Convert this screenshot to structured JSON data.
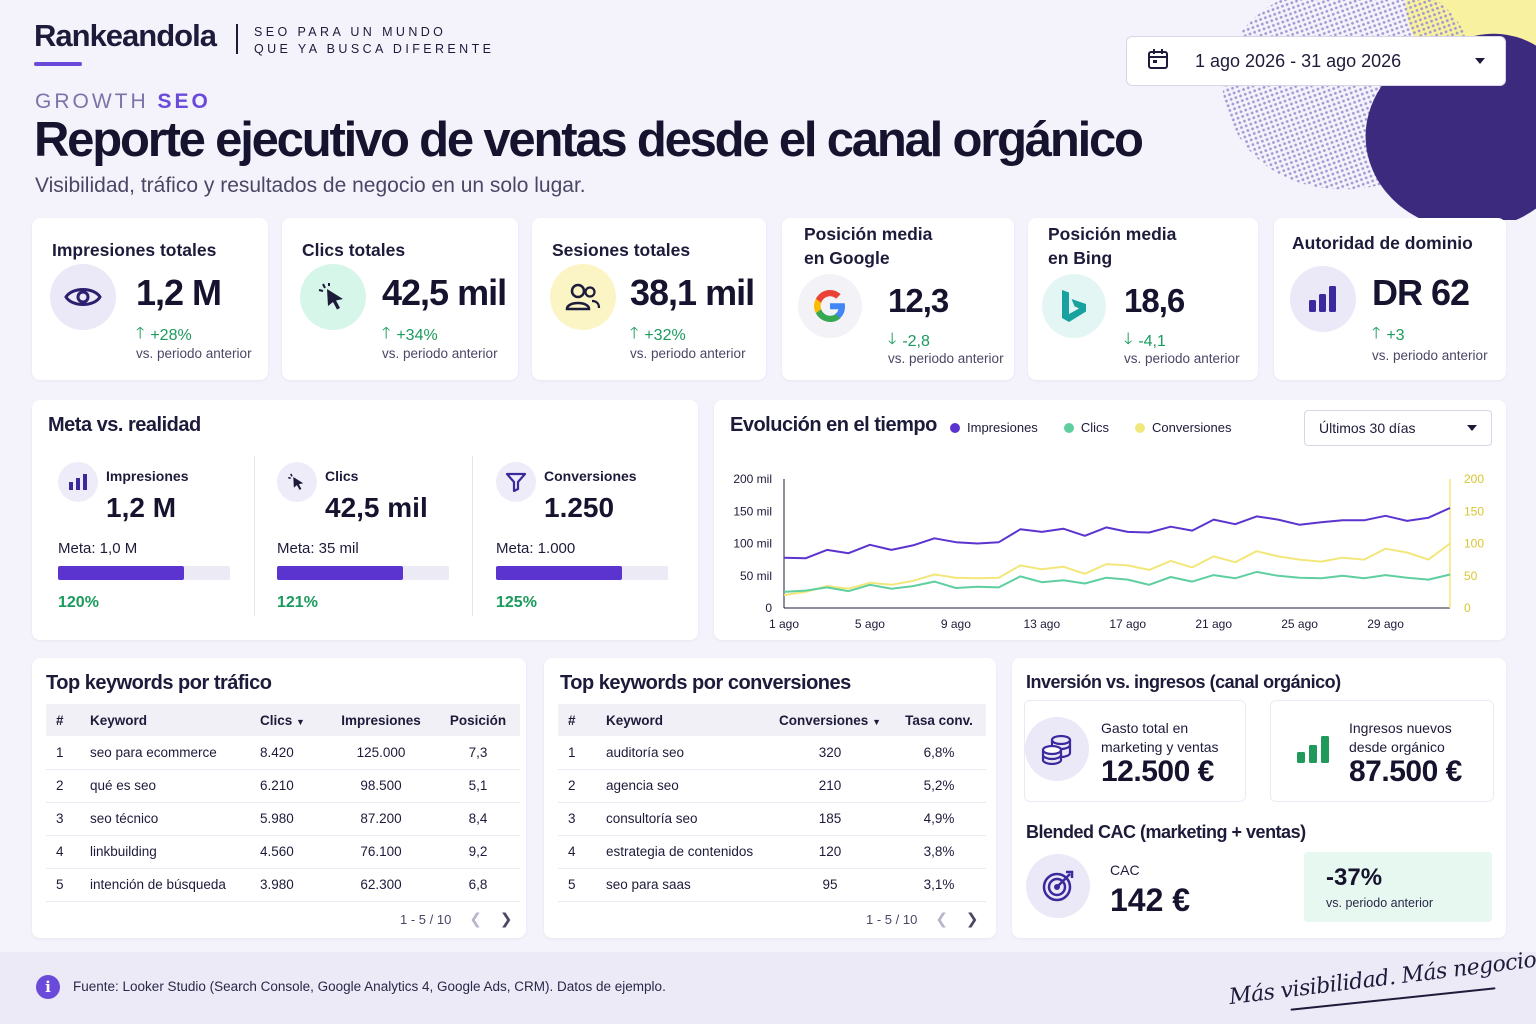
{
  "brand": {
    "logo": "Rankeandola",
    "tagline_line1": "SEO PARA UN MUNDO",
    "tagline_line2": "QUE YA BUSCA DIFERENTE"
  },
  "date_range": {
    "value": "1 ago 2026 - 31 ago 2026",
    "icon": "calendar-icon"
  },
  "header": {
    "eyebrow_a": "GROWTH",
    "eyebrow_b": "SEO",
    "title": "Reporte ejecutivo de ventas desde el canal orgánico",
    "subtitle": "Visibilidad, tráfico y resultados de negocio en un solo lugar."
  },
  "kpis": [
    {
      "title": "Impresiones totales",
      "value": "1,2 M",
      "delta": "+28%",
      "direction": "up",
      "prev": "vs. periodo anterior",
      "icon": "eye-icon",
      "icon_bg": "#ebe8f8"
    },
    {
      "title": "Clics totales",
      "value": "42,5 mil",
      "delta": "+34%",
      "direction": "up",
      "prev": "vs. periodo anterior",
      "icon": "cursor-click-icon",
      "icon_bg": "#d7f6ea"
    },
    {
      "title": "Sesiones totales",
      "value": "38,1 mil",
      "delta": "+32%",
      "direction": "up",
      "prev": "vs. periodo anterior",
      "icon": "users-icon",
      "icon_bg": "#fbf5c5"
    },
    {
      "title_line1": "Posición media",
      "title_line2": "en Google",
      "value": "12,3",
      "delta": "-2,8",
      "direction": "down",
      "prev": "vs. periodo anterior",
      "icon": "google-icon",
      "icon_bg": "#f3f2f7"
    },
    {
      "title_line1": "Posición media",
      "title_line2": "en Bing",
      "value": "18,6",
      "delta": "-4,1",
      "direction": "down",
      "prev": "vs. periodo anterior",
      "icon": "bing-icon",
      "icon_bg": "#e4f6f4"
    },
    {
      "title": "Autoridad de dominio",
      "value": "DR 62",
      "delta": "+3",
      "direction": "up",
      "prev": "vs. periodo anterior",
      "icon": "bar-chart-icon",
      "icon_bg": "#ebe8f8"
    }
  ],
  "goals": {
    "title": "Meta vs. realidad",
    "items": [
      {
        "label": "Impresiones",
        "value": "1,2 M",
        "meta": "Meta: 1,0 M",
        "progress": 0.73,
        "pct": "120%",
        "icon": "bar-chart-icon"
      },
      {
        "label": "Clics",
        "value": "42,5 mil",
        "meta": "Meta: 35 mil",
        "progress": 0.73,
        "pct": "121%",
        "icon": "cursor-click-icon"
      },
      {
        "label": "Conversiones",
        "value": "1.250",
        "meta": "Meta: 1.000",
        "progress": 0.73,
        "pct": "125%",
        "icon": "funnel-icon"
      }
    ]
  },
  "evolution": {
    "title": "Evolución en el tiempo",
    "period": "Últimos 30 días",
    "colors": {
      "impresiones": "#5b34d0",
      "clics": "#5fcf9f",
      "conversiones": "#f2e77a"
    }
  },
  "chart_data": {
    "type": "line",
    "x": [
      "1 ago",
      "2 ago",
      "3 ago",
      "4 ago",
      "5 ago",
      "6 ago",
      "7 ago",
      "8 ago",
      "9 ago",
      "10 ago",
      "11 ago",
      "12 ago",
      "13 ago",
      "14 ago",
      "15 ago",
      "16 ago",
      "17 ago",
      "18 ago",
      "19 ago",
      "20 ago",
      "21 ago",
      "22 ago",
      "23 ago",
      "24 ago",
      "25 ago",
      "26 ago",
      "27 ago",
      "28 ago",
      "29 ago",
      "30 ago",
      "31 ago",
      "1 sep"
    ],
    "x_tick_labels": [
      "1 ago",
      "5 ago",
      "9 ago",
      "13 ago",
      "17 ago",
      "21 ago",
      "25 ago",
      "29 ago"
    ],
    "y_left_ticks": [
      "0",
      "50 mil",
      "100 mil",
      "150 mil",
      "200 mil"
    ],
    "y_right_ticks": [
      "0",
      "50",
      "100",
      "150",
      "200"
    ],
    "ylim_left": [
      0,
      200000
    ],
    "ylim_right": [
      0,
      200
    ],
    "series": [
      {
        "name": "Impresiones",
        "axis": "left",
        "values": [
          78000,
          77000,
          90000,
          85000,
          98000,
          90000,
          97000,
          108000,
          102000,
          100000,
          102000,
          122000,
          118000,
          123000,
          112000,
          125000,
          118000,
          117000,
          126000,
          120000,
          137000,
          130000,
          142000,
          137000,
          129000,
          133000,
          136000,
          136000,
          143000,
          135000,
          140000,
          155000
        ]
      },
      {
        "name": "Clics",
        "axis": "left",
        "values": [
          25000,
          27000,
          32000,
          26000,
          36000,
          30000,
          34000,
          41000,
          31000,
          33000,
          32000,
          49000,
          40000,
          43000,
          38000,
          47000,
          44000,
          36000,
          48000,
          41000,
          51000,
          46000,
          56000,
          50000,
          47000,
          46000,
          50000,
          46000,
          51000,
          47000,
          44000,
          52000
        ]
      },
      {
        "name": "Conversiones",
        "axis": "right",
        "values": [
          20,
          25,
          34,
          30,
          39,
          36,
          42,
          52,
          47,
          46,
          47,
          66,
          60,
          64,
          53,
          68,
          66,
          59,
          73,
          63,
          80,
          71,
          88,
          80,
          75,
          72,
          78,
          75,
          92,
          86,
          75,
          100
        ]
      }
    ]
  },
  "top_traffic": {
    "title": "Top keywords por tráfico",
    "headers": [
      "#",
      "Keyword",
      "Clics",
      "Impresiones",
      "Posición"
    ],
    "rows": [
      [
        "1",
        "seo para ecommerce",
        "8.420",
        "125.000",
        "7,3"
      ],
      [
        "2",
        "qué es seo",
        "6.210",
        "98.500",
        "5,1"
      ],
      [
        "3",
        "seo técnico",
        "5.980",
        "87.200",
        "8,4"
      ],
      [
        "4",
        "linkbuilding",
        "4.560",
        "76.100",
        "9,2"
      ],
      [
        "5",
        "intención de búsqueda",
        "3.980",
        "62.300",
        "6,8"
      ]
    ],
    "pager": "1 - 5 / 10"
  },
  "top_conversions": {
    "title": "Top keywords por conversiones",
    "headers": [
      "#",
      "Keyword",
      "Conversiones",
      "Tasa conv."
    ],
    "rows": [
      [
        "1",
        "auditoría seo",
        "320",
        "6,8%"
      ],
      [
        "2",
        "agencia seo",
        "210",
        "5,2%"
      ],
      [
        "3",
        "consultoría seo",
        "185",
        "4,9%"
      ],
      [
        "4",
        "estrategia de contenidos",
        "120",
        "3,8%"
      ],
      [
        "5",
        "seo para saas",
        "95",
        "3,1%"
      ]
    ],
    "pager": "1 - 5 / 10"
  },
  "investment": {
    "title": "Inversión vs. ingresos (canal orgánico)",
    "spend_label_1": "Gasto total en",
    "spend_label_2": "marketing y ventas",
    "spend_value": "12.500 €",
    "revenue_label_1": "Ingresos nuevos",
    "revenue_label_2": "desde orgánico",
    "revenue_value": "87.500 €",
    "cac_title": "Blended CAC (marketing + ventas)",
    "cac_label": "CAC",
    "cac_value": "142 €",
    "cac_delta": "-37%",
    "cac_prev": "vs. periodo anterior"
  },
  "footer": {
    "source": "Fuente: Looker Studio (Search Console, Google Analytics 4, Google Ads, CRM). Datos de ejemplo.",
    "slogan": "Más visibilidad. Más negocio."
  }
}
